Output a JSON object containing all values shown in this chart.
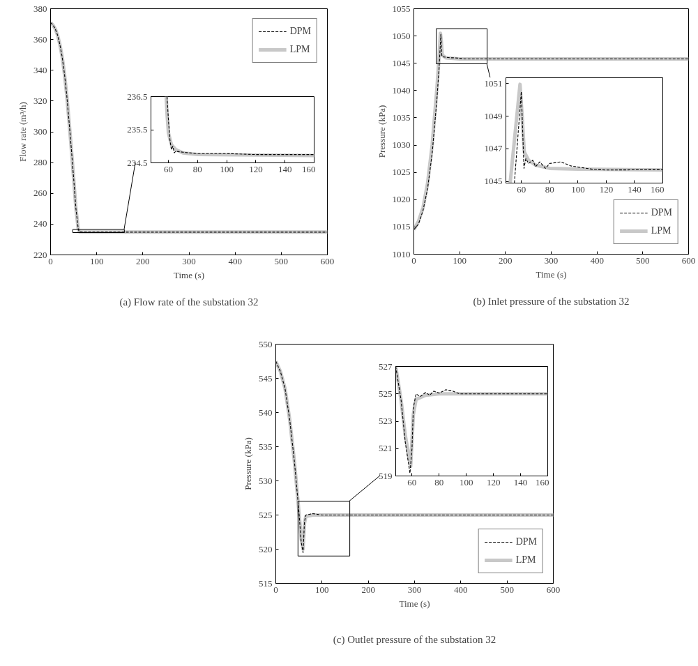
{
  "chart_data": [
    {
      "type": "line",
      "title": "(a) Flow rate of the substation 32",
      "xlabel": "Time (s)",
      "ylabel": "Flow rate (m³/h)",
      "xlim": [
        0,
        600
      ],
      "ylim": [
        220,
        380
      ],
      "xticks": [
        0,
        100,
        200,
        300,
        400,
        500,
        600
      ],
      "yticks": [
        220,
        240,
        260,
        280,
        300,
        320,
        340,
        360,
        380
      ],
      "grid": false,
      "legend": "top right",
      "series": [
        {
          "name": "DPM",
          "color": "#000000",
          "line_style": "dashed",
          "x": [
            0,
            5,
            10,
            15,
            20,
            25,
            30,
            35,
            40,
            45,
            50,
            55,
            60,
            62,
            70,
            100,
            600
          ],
          "values": [
            371,
            369.5,
            367,
            363,
            357,
            349,
            338,
            324,
            307,
            289,
            270,
            250,
            237,
            235,
            234.8,
            234.8,
            234.8
          ]
        },
        {
          "name": "LPM",
          "color": "#c8c8c8",
          "line_style": "solid",
          "x": [
            0,
            5,
            10,
            15,
            20,
            25,
            30,
            35,
            40,
            45,
            50,
            55,
            60,
            62,
            70,
            100,
            600
          ],
          "values": [
            371,
            369.5,
            367,
            363,
            357,
            349,
            338,
            324,
            307,
            289,
            270,
            250,
            237,
            235,
            234.8,
            234.8,
            234.8
          ]
        }
      ]
    },
    {
      "type": "line",
      "xlim": [
        48,
        160
      ],
      "ylim": [
        234.5,
        236.5
      ],
      "xticks": [
        60,
        80,
        100,
        120,
        140,
        160
      ],
      "yticks": [
        234.5,
        235.5,
        236.5
      ],
      "grid": false,
      "legend": false,
      "series": [
        {
          "color": "#000000",
          "line_style": "dashed",
          "x": [
            59,
            60,
            61,
            62,
            63,
            64,
            65,
            70,
            80,
            100,
            120,
            160
          ],
          "values": [
            236.5,
            235.8,
            235.2,
            234.9,
            235.0,
            234.8,
            234.85,
            234.82,
            234.78,
            234.78,
            234.75,
            234.75
          ]
        },
        {
          "color": "#c8c8c8",
          "line_style": "solid",
          "x": [
            58.5,
            59,
            60,
            62,
            65,
            70,
            80,
            160
          ],
          "values": [
            236.5,
            236,
            235.4,
            235.05,
            234.9,
            234.8,
            234.75,
            234.72
          ]
        }
      ]
    },
    {
      "type": "line",
      "title": "(b) Inlet pressure of the substation 32",
      "xlabel": "Time (s)",
      "ylabel": "Pressure (kPa)",
      "xlim": [
        0,
        600
      ],
      "ylim": [
        1010,
        1055
      ],
      "xticks": [
        0,
        100,
        200,
        300,
        400,
        500,
        600
      ],
      "yticks": [
        1010,
        1015,
        1020,
        1025,
        1030,
        1035,
        1040,
        1045,
        1050,
        1055
      ],
      "grid": false,
      "legend": "bottom right",
      "series": [
        {
          "name": "DPM",
          "color": "#000000",
          "line_style": "dashed",
          "x": [
            0,
            10,
            20,
            30,
            40,
            50,
            55,
            59,
            61,
            62,
            70,
            80,
            90,
            110,
            600
          ],
          "values": [
            1014.5,
            1015.5,
            1018,
            1022,
            1028.5,
            1038,
            1044,
            1050.3,
            1046.5,
            1046.2,
            1046.1,
            1046,
            1046,
            1045.8,
            1045.8
          ]
        },
        {
          "name": "LPM",
          "color": "#c8c8c8",
          "line_style": "solid",
          "x": [
            0,
            10,
            20,
            30,
            40,
            50,
            55,
            58,
            60,
            62,
            70,
            100,
            600
          ],
          "values": [
            1014.5,
            1016,
            1018.5,
            1023,
            1030,
            1040,
            1046,
            1050.5,
            1049,
            1046.5,
            1046,
            1045.8,
            1045.8
          ]
        }
      ]
    },
    {
      "type": "line",
      "xlim": [
        49,
        160
      ],
      "ylim": [
        1044.9,
        1051.35
      ],
      "xticks": [
        60,
        80,
        100,
        120,
        140,
        160
      ],
      "yticks": [
        1045,
        1047,
        1049,
        1051
      ],
      "grid": false,
      "legend": false,
      "series": [
        {
          "color": "#000000",
          "line_style": "dashed",
          "x": [
            55,
            59.9,
            61.8,
            63.1,
            65,
            68,
            70,
            73,
            77,
            80,
            88,
            95,
            110,
            120,
            160
          ],
          "values": [
            1044.9,
            1050.5,
            1045.8,
            1046.4,
            1046.1,
            1046.3,
            1045.9,
            1046.2,
            1045.8,
            1046.1,
            1046.2,
            1045.95,
            1045.75,
            1045.7,
            1045.72
          ]
        },
        {
          "color": "#c8c8c8",
          "line_style": "solid",
          "x": [
            52,
            59,
            60.5,
            62,
            65,
            70,
            80,
            100,
            160
          ],
          "values": [
            1044.9,
            1050.95,
            1049,
            1046.8,
            1046.3,
            1046.0,
            1045.8,
            1045.75,
            1045.7
          ]
        }
      ]
    },
    {
      "type": "line",
      "title": "(c) Outlet pressure of the substation 32",
      "xlabel": "Time (s)",
      "ylabel": "Pressure (kPa)",
      "xlim": [
        0,
        600
      ],
      "ylim": [
        515,
        550
      ],
      "xticks": [
        0,
        100,
        200,
        300,
        400,
        500,
        600
      ],
      "yticks": [
        515,
        520,
        525,
        530,
        535,
        540,
        545,
        550
      ],
      "grid": false,
      "legend": "bottom right",
      "series": [
        {
          "name": "DPM",
          "color": "#000000",
          "line_style": "dashed",
          "x": [
            0,
            10,
            20,
            30,
            40,
            50,
            55,
            59,
            62,
            65,
            80,
            100,
            600
          ],
          "values": [
            547.5,
            546,
            543.5,
            539,
            533,
            525.5,
            521,
            519.5,
            524,
            525,
            525.2,
            525,
            525
          ]
        },
        {
          "name": "LPM",
          "color": "#c8c8c8",
          "line_style": "solid",
          "x": [
            0,
            10,
            20,
            30,
            40,
            50,
            55,
            59,
            62,
            65,
            80,
            100,
            600
          ],
          "values": [
            547.5,
            546,
            543.5,
            539,
            533,
            525.5,
            521.5,
            520,
            523.8,
            524.8,
            525,
            525,
            525
          ]
        }
      ]
    },
    {
      "type": "line",
      "xlim": [
        48,
        160
      ],
      "ylim": [
        519,
        527
      ],
      "xticks": [
        60,
        80,
        100,
        120,
        140,
        160
      ],
      "yticks": [
        519,
        521,
        523,
        525,
        527
      ],
      "grid": false,
      "legend": false,
      "series": [
        {
          "color": "#000000",
          "line_style": "dashed",
          "x": [
            48,
            52,
            55,
            58.5,
            60,
            61,
            63,
            66,
            70,
            73,
            76,
            80,
            85,
            90,
            95,
            110,
            160
          ],
          "values": [
            527,
            524.5,
            521.5,
            519.2,
            521,
            524,
            525,
            524.8,
            525.1,
            524.9,
            525.2,
            525.05,
            525.3,
            525.2,
            525.0,
            525.0,
            525.0
          ]
        },
        {
          "color": "#c8c8c8",
          "line_style": "solid",
          "x": [
            48,
            52,
            55,
            59,
            61,
            63,
            70,
            80,
            160
          ],
          "values": [
            527,
            524.5,
            522,
            519.7,
            523.5,
            524.6,
            524.9,
            525,
            525
          ]
        }
      ]
    }
  ]
}
